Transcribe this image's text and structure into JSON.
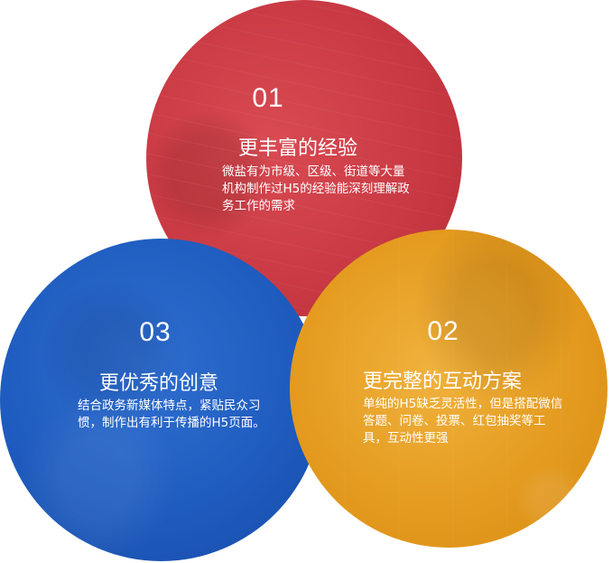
{
  "features": [
    {
      "number": "01",
      "title": "更丰富的经验",
      "description": "微盐有为市级、区级、街道等大量机构制作过H5的经验能深刻理解政务工作的需求",
      "color": "#c93a44"
    },
    {
      "number": "02",
      "title": "更完整的互动方案",
      "description": "单纯的H5缺乏灵活性，但是搭配微信答题、问卷、投票、红包抽奖等工具，互动性更强",
      "color": "#e49b1f"
    },
    {
      "number": "03",
      "title": "更优秀的创意",
      "description": "结合政务新媒体特点，紧贴民众习惯，制作出有利于传播的H5页面。",
      "color": "#1f5cbf"
    }
  ]
}
